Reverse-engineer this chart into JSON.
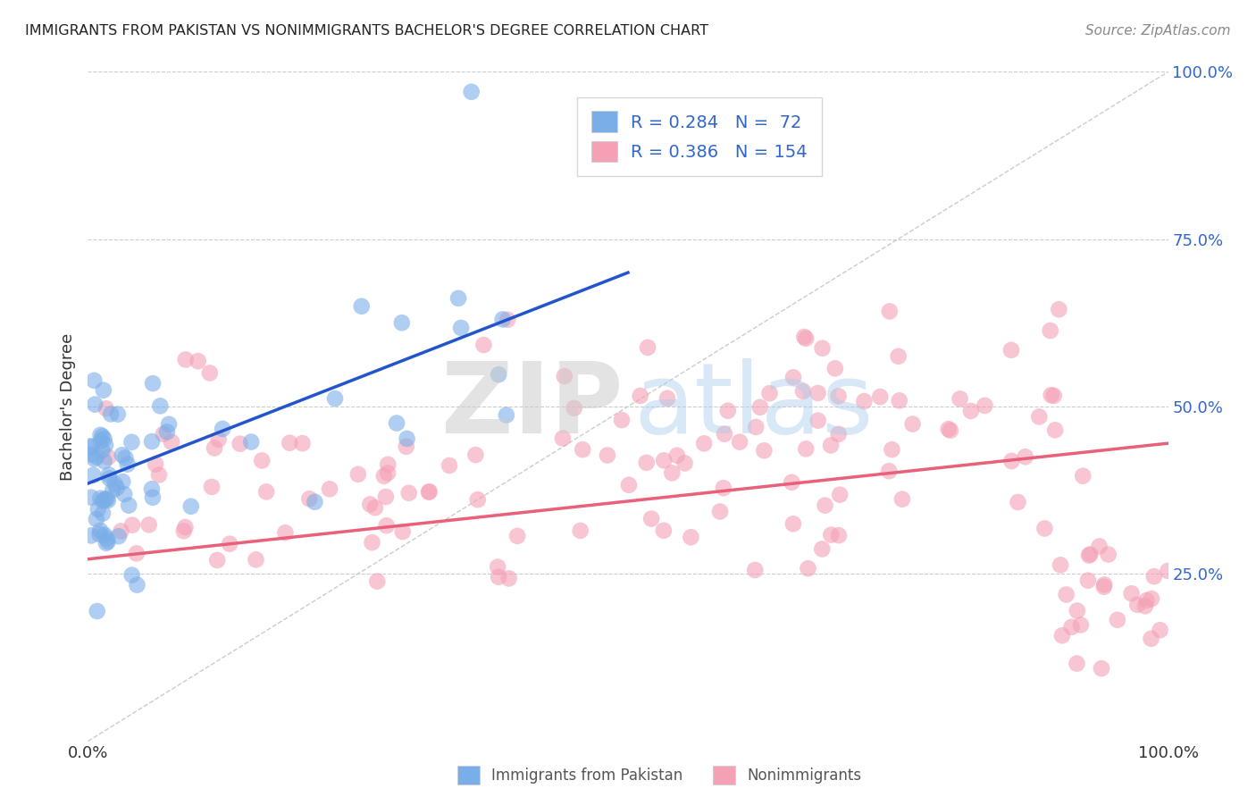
{
  "title": "IMMIGRANTS FROM PAKISTAN VS NONIMMIGRANTS BACHELOR'S DEGREE CORRELATION CHART",
  "source": "Source: ZipAtlas.com",
  "ylabel": "Bachelor's Degree",
  "xlim": [
    0,
    1
  ],
  "ylim": [
    0,
    1
  ],
  "xticks": [
    0,
    0.25,
    0.5,
    0.75,
    1.0
  ],
  "xticklabels": [
    "0.0%",
    "",
    "",
    "",
    "100.0%"
  ],
  "ytick_labels_right": [
    "100.0%",
    "75.0%",
    "50.0%",
    "25.0%"
  ],
  "ytick_vals_right": [
    1.0,
    0.75,
    0.5,
    0.25
  ],
  "legend_R1": "R = 0.284",
  "legend_N1": "N =  72",
  "legend_R2": "R = 0.386",
  "legend_N2": "N = 154",
  "legend_color": "#3366cc",
  "blue_color": "#7aaee8",
  "pink_color": "#f4a0b5",
  "blue_line_color": "#2255cc",
  "pink_line_color": "#e8607a",
  "background_color": "#ffffff",
  "grid_color": "#cccccc",
  "blue_trend_line": {
    "x0": 0.0,
    "x1": 0.5,
    "y0": 0.385,
    "y1": 0.7
  },
  "pink_trend_line": {
    "x0": 0.0,
    "x1": 1.0,
    "y0": 0.272,
    "y1": 0.445
  }
}
